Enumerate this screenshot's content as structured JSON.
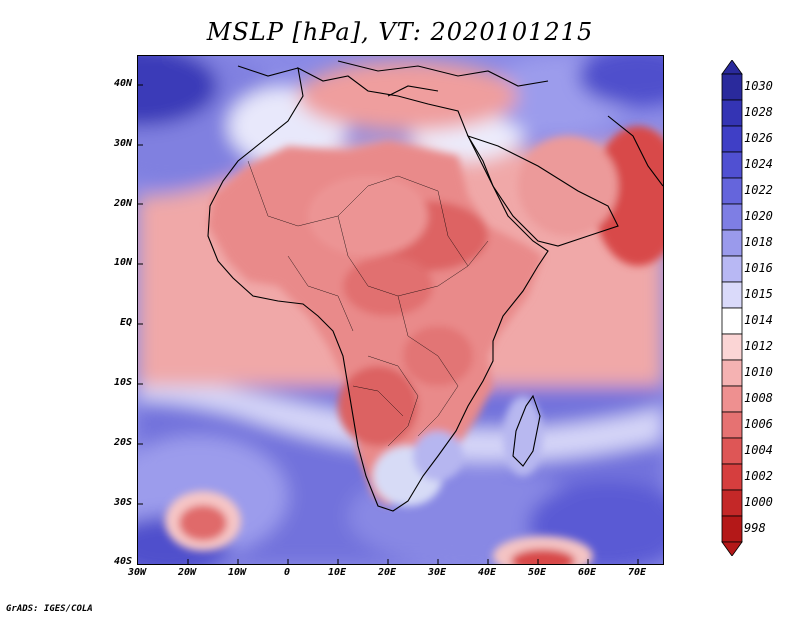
{
  "title": "MSLP [hPa], VT: 2020101215",
  "credit": "GrADS: IGES/COLA",
  "lat_labels": [
    "40N",
    "30N",
    "20N",
    "10N",
    "EQ",
    "10S",
    "20S",
    "30S",
    "40S"
  ],
  "lon_labels": [
    "30W",
    "20W",
    "10W",
    "0",
    "10E",
    "20E",
    "30E",
    "40E",
    "50E",
    "60E",
    "70E"
  ],
  "colorbar": {
    "levels": [
      "1030",
      "1028",
      "1026",
      "1024",
      "1022",
      "1020",
      "1018",
      "1016",
      "1015",
      "1014",
      "1012",
      "1010",
      "1008",
      "1006",
      "1004",
      "1002",
      "1000",
      "998"
    ],
    "colors": [
      "#2a2a9c",
      "#3434b4",
      "#3f3fc6",
      "#5050d2",
      "#6565dc",
      "#7e7ee4",
      "#9a9aec",
      "#b8b8f4",
      "#dadafa",
      "#ffffff",
      "#fbd5d5",
      "#f5b2b2",
      "#ee9090",
      "#e67272",
      "#de5656",
      "#d63e3e",
      "#c42828",
      "#b41818"
    ]
  },
  "map": {
    "variable": "MSLP",
    "units": "hPa",
    "valid_time": "2020101215",
    "extent": {
      "lon_min": -30,
      "lon_max": 75,
      "lat_min": -40,
      "lat_max": 45
    }
  }
}
